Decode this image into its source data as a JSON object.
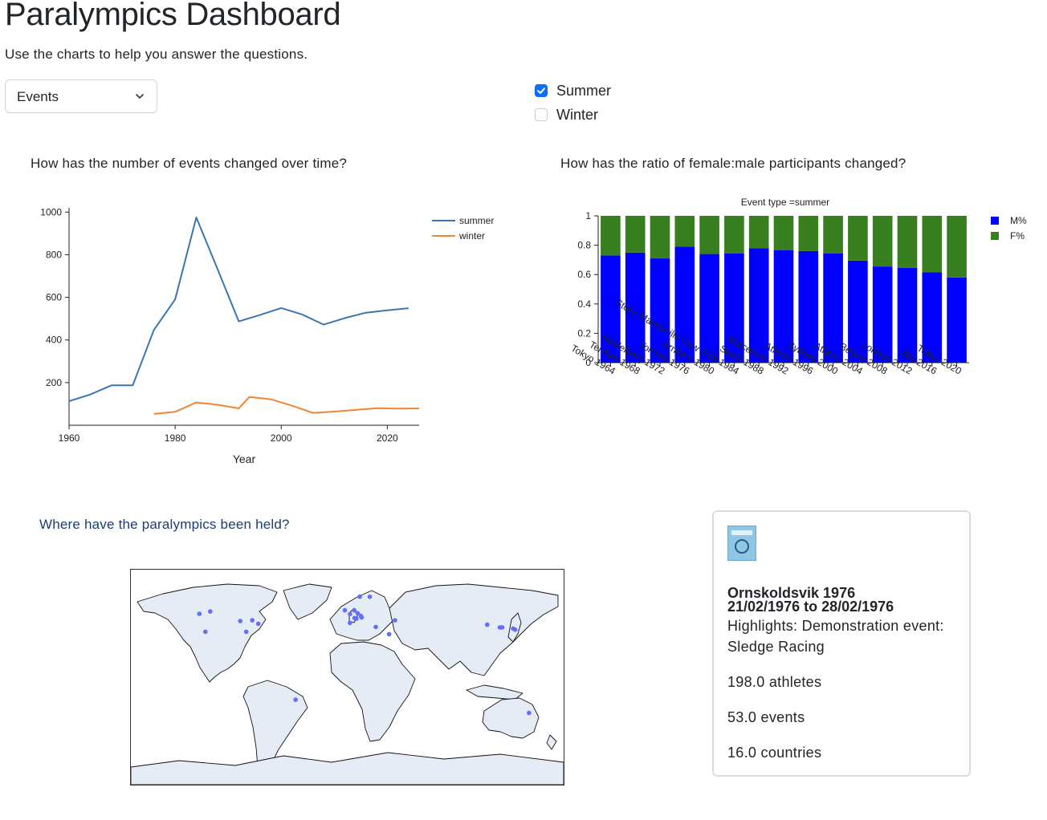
{
  "header": {
    "title": "Paralympics Dashboard",
    "subtitle": "Use the charts to help you answer the questions."
  },
  "controls": {
    "dropdown_value": "Events",
    "checkboxes": [
      {
        "label": "Summer",
        "checked": true
      },
      {
        "label": "Winter",
        "checked": false
      }
    ]
  },
  "questions": {
    "q1": "How has the number of events changed over time?",
    "q2": "How has the ratio of female:male participants changed?",
    "q3": "Where have the paralympics been held?"
  },
  "colors": {
    "summer": "#3b76af",
    "winter": "#ef8636",
    "male": "#0000ff",
    "female": "#38801f",
    "map_marker": "#636efa",
    "checkbox_accent": "#0d6efd"
  },
  "chart_data": [
    {
      "type": "line",
      "title": "",
      "xlabel": "Year",
      "ylabel": "",
      "xlim": [
        1960,
        2026
      ],
      "ylim": [
        0,
        1020
      ],
      "xticks": [
        1960,
        1980,
        2000,
        2020
      ],
      "yticks": [
        200,
        400,
        600,
        800,
        1000
      ],
      "legend": "top-right",
      "series": [
        {
          "name": "summer",
          "x": [
            1960,
            1964,
            1968,
            1972,
            1976,
            1980,
            1984,
            1988,
            1992,
            1996,
            2000,
            2004,
            2008,
            2012,
            2016,
            2020,
            2024
          ],
          "y": [
            113,
            144,
            187,
            187,
            447,
            590,
            975,
            732,
            487,
            517,
            550,
            519,
            472,
            503,
            528,
            539,
            549
          ]
        },
        {
          "name": "winter",
          "x": [
            1976,
            1980,
            1984,
            1988,
            1992,
            1994,
            1998,
            2002,
            2006,
            2010,
            2014,
            2018,
            2022,
            2026
          ],
          "y": [
            53,
            63,
            107,
            96,
            79,
            133,
            122,
            92,
            58,
            64,
            72,
            80,
            78,
            79
          ]
        }
      ]
    },
    {
      "type": "bar",
      "stacked": true,
      "title": "Event type =summer",
      "ylim": [
        0,
        1
      ],
      "yticks": [
        "0",
        "0.2",
        "0.4",
        "0.6",
        "0.8",
        "1"
      ],
      "legend": "top-right",
      "categories": [
        "Tokyo 1964",
        "Tel Aviv 1968",
        "Heidelberg 1972",
        "Toronto 1976",
        "Arnhem 1980",
        "Stoke Mandeville New York 1984",
        "Seoul 1988",
        "Barcelona 1992",
        "Atlanta 1996",
        "Sydney 2000",
        "Athens 2004",
        "Beijing 2008",
        "London 2012",
        "Rio 2016",
        "Tokyo 2020"
      ],
      "series": [
        {
          "name": "M%",
          "values": [
            0.73,
            0.75,
            0.71,
            0.79,
            0.74,
            0.745,
            0.78,
            0.765,
            0.76,
            0.745,
            0.695,
            0.655,
            0.645,
            0.615,
            0.58
          ]
        },
        {
          "name": "F%",
          "values": [
            0.27,
            0.25,
            0.29,
            0.21,
            0.26,
            0.255,
            0.22,
            0.235,
            0.24,
            0.255,
            0.305,
            0.345,
            0.355,
            0.385,
            0.42
          ]
        }
      ]
    }
  ],
  "map": {
    "markers": [
      {
        "lon": -123,
        "lat": 49
      },
      {
        "lon": -118,
        "lat": 34
      },
      {
        "lon": -114,
        "lat": 51
      },
      {
        "lon": -89,
        "lat": 43
      },
      {
        "lon": -84,
        "lat": 34
      },
      {
        "lon": -79,
        "lat": 43.6
      },
      {
        "lon": -74,
        "lat": 40.7
      },
      {
        "lon": -43,
        "lat": -22.9
      },
      {
        "lon": -2,
        "lat": 52
      },
      {
        "lon": 2.3,
        "lat": 48.8
      },
      {
        "lon": 5.9,
        "lat": 51.9
      },
      {
        "lon": 6,
        "lat": 45.5
      },
      {
        "lon": 8.7,
        "lat": 49.4
      },
      {
        "lon": 10.4,
        "lat": 63.4
      },
      {
        "lon": 11.3,
        "lat": 47.3
      },
      {
        "lon": 12,
        "lat": 46
      },
      {
        "lon": 2.2,
        "lat": 41.4
      },
      {
        "lon": 7.7,
        "lat": 45
      },
      {
        "lon": 18.7,
        "lat": 63.3
      },
      {
        "lon": 23.7,
        "lat": 38
      },
      {
        "lon": 34.8,
        "lat": 32
      },
      {
        "lon": 39.7,
        "lat": 43.6
      },
      {
        "lon": 116.4,
        "lat": 39.9
      },
      {
        "lon": 126.9,
        "lat": 37.6
      },
      {
        "lon": 128.9,
        "lat": 37.7
      },
      {
        "lon": 138,
        "lat": 36.6
      },
      {
        "lon": 139.7,
        "lat": 35.7
      },
      {
        "lon": 151.2,
        "lat": -33.9
      }
    ]
  },
  "card": {
    "title": "Ornskoldsvik 1976",
    "dates": "21/02/1976 to 28/02/1976",
    "highlights": "Highlights: Demonstration event: Sledge Racing",
    "athletes": "198.0 athletes",
    "events": "53.0 events",
    "countries": "16.0 countries"
  }
}
